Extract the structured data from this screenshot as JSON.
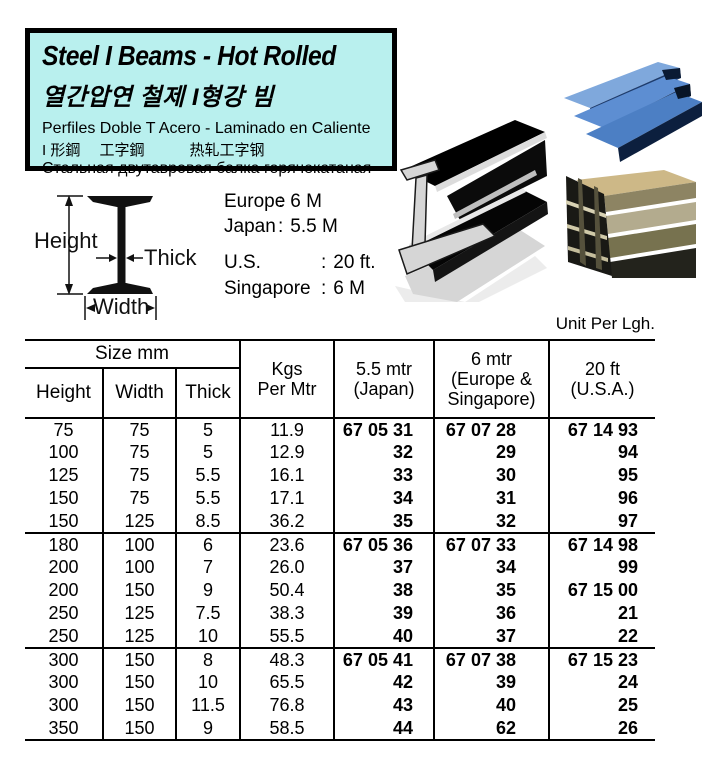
{
  "header": {
    "title": "Steel I Beams - Hot Rolled",
    "title_korean": "열간압연 철제 I형강 빔",
    "title_spanish": "Perfiles Doble T Acero - Laminado en Caliente",
    "title_cjk": "I 形鋼　 工字鋼　　　热轧工字钢",
    "title_russian": "Стальная двутавровая балка горячекатаная"
  },
  "diagram": {
    "height_label": "Height",
    "thick_label": "Thick",
    "width_label": "Width"
  },
  "ui": {
    "colon": ":"
  },
  "lengths": [
    {
      "region": "Europe",
      "value": "6 M"
    },
    {
      "region": "Japan",
      "value": "5.5 M"
    },
    {
      "region": "U.S.",
      "value": "20 ft."
    },
    {
      "region": "Singapore",
      "value": "6 M"
    }
  ],
  "photos": {
    "black_ibeam": "black I-beam photo",
    "blue_beams": "blue steel beams photo",
    "stacked_beams": "stacked I-beams photo"
  },
  "table": {
    "unit_note": "Unit Per Lgh.",
    "headers": {
      "size_mm": "Size mm",
      "height": "Height",
      "width": "Width",
      "thick": "Thick",
      "kgs1": "Kgs",
      "kgs2": "Per Mtr",
      "japan1": "5.5 mtr",
      "japan2": "(Japan)",
      "eusg1": "6 mtr",
      "eusg2": "(Europe &",
      "eusg3": "Singapore)",
      "usa1": "20 ft",
      "usa2": "(U.S.A.)"
    },
    "groups": [
      [
        {
          "height": "75",
          "width": "75",
          "thick": "5",
          "kgs": "11.9",
          "japan": "67 05 31",
          "europe_sg": "67 07 28",
          "usa": "67 14 93"
        },
        {
          "height": "100",
          "width": "75",
          "thick": "5",
          "kgs": "12.9",
          "japan": "32",
          "europe_sg": "29",
          "usa": "94"
        },
        {
          "height": "125",
          "width": "75",
          "thick": "5.5",
          "kgs": "16.1",
          "japan": "33",
          "europe_sg": "30",
          "usa": "95"
        },
        {
          "height": "150",
          "width": "75",
          "thick": "5.5",
          "kgs": "17.1",
          "japan": "34",
          "europe_sg": "31",
          "usa": "96"
        },
        {
          "height": "150",
          "width": "125",
          "thick": "8.5",
          "kgs": "36.2",
          "japan": "35",
          "europe_sg": "32",
          "usa": "97"
        }
      ],
      [
        {
          "height": "180",
          "width": "100",
          "thick": "6",
          "kgs": "23.6",
          "japan": "67 05 36",
          "europe_sg": "67 07 33",
          "usa": "67 14 98"
        },
        {
          "height": "200",
          "width": "100",
          "thick": "7",
          "kgs": "26.0",
          "japan": "37",
          "europe_sg": "34",
          "usa": "99"
        },
        {
          "height": "200",
          "width": "150",
          "thick": "9",
          "kgs": "50.4",
          "japan": "38",
          "europe_sg": "35",
          "usa": "67 15 00"
        },
        {
          "height": "250",
          "width": "125",
          "thick": "7.5",
          "kgs": "38.3",
          "japan": "39",
          "europe_sg": "36",
          "usa": "21"
        },
        {
          "height": "250",
          "width": "125",
          "thick": "10",
          "kgs": "55.5",
          "japan": "40",
          "europe_sg": "37",
          "usa": "22"
        }
      ],
      [
        {
          "height": "300",
          "width": "150",
          "thick": "8",
          "kgs": "48.3",
          "japan": "67 05 41",
          "europe_sg": "67 07 38",
          "usa": "67 15 23"
        },
        {
          "height": "300",
          "width": "150",
          "thick": "10",
          "kgs": "65.5",
          "japan": "42",
          "europe_sg": "39",
          "usa": "24"
        },
        {
          "height": "300",
          "width": "150",
          "thick": "11.5",
          "kgs": "76.8",
          "japan": "43",
          "europe_sg": "40",
          "usa": "25"
        },
        {
          "height": "350",
          "width": "150",
          "thick": "9",
          "kgs": "58.5",
          "japan": "44",
          "europe_sg": "62",
          "usa": "26"
        }
      ]
    ]
  },
  "colors": {
    "header_bg": "#b9f0ee",
    "ink": "#000000",
    "photo_blue_top": "#5d8ed2",
    "photo_tan": "#cdb887"
  }
}
